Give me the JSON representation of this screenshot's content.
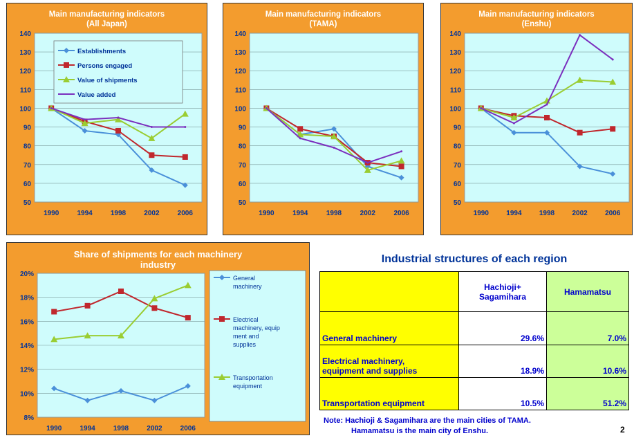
{
  "chart_data": [
    {
      "type": "line",
      "title": "Main manufacturing indicators (All Japan)",
      "title_lines": [
        "Main manufacturing indicators",
        "(All Japan)"
      ],
      "categories": [
        "1990",
        "1994",
        "1998",
        "2002",
        "2006"
      ],
      "ylim": [
        50,
        140
      ],
      "yticks": [
        "50",
        "60",
        "70",
        "80",
        "90",
        "100",
        "110",
        "120",
        "130",
        "140"
      ],
      "legend": "inside-top",
      "series": [
        {
          "name": "Establishments",
          "color": "#4a90d9",
          "marker": "diamond",
          "values": [
            100,
            88,
            86,
            67,
            59
          ]
        },
        {
          "name": "Persons engaged",
          "color": "#c0272d",
          "marker": "square",
          "values": [
            100,
            93,
            88,
            75,
            74
          ]
        },
        {
          "name": "Value of shipments",
          "color": "#9acd32",
          "marker": "triangle",
          "values": [
            100,
            92,
            94,
            84,
            97
          ]
        },
        {
          "name": "Value added",
          "color": "#7b2fbe",
          "marker": "none",
          "values": [
            100,
            94,
            95,
            90,
            90
          ]
        }
      ]
    },
    {
      "type": "line",
      "title": "Main manufacturing indicators (TAMA)",
      "title_lines": [
        "Main manufacturing indicators",
        "(TAMA)"
      ],
      "categories": [
        "1990",
        "1994",
        "1998",
        "2002",
        "2006"
      ],
      "ylim": [
        50,
        140
      ],
      "yticks": [
        "50",
        "60",
        "70",
        "80",
        "90",
        "100",
        "110",
        "120",
        "130",
        "140"
      ],
      "series": [
        {
          "name": "Establishments",
          "color": "#4a90d9",
          "marker": "diamond",
          "values": [
            100,
            86,
            89,
            69,
            63
          ]
        },
        {
          "name": "Persons engaged",
          "color": "#c0272d",
          "marker": "square",
          "values": [
            100,
            89,
            85,
            71,
            69
          ]
        },
        {
          "name": "Value of shipments",
          "color": "#9acd32",
          "marker": "triangle",
          "values": [
            100,
            86,
            85,
            67,
            72
          ]
        },
        {
          "name": "Value added",
          "color": "#7b2fbe",
          "marker": "none",
          "values": [
            100,
            84,
            79,
            71,
            77
          ]
        }
      ]
    },
    {
      "type": "line",
      "title": "Main manufacturing indicators (Enshu)",
      "title_lines": [
        "Main manufacturing indicators",
        "(Enshu)"
      ],
      "categories": [
        "1990",
        "1994",
        "1998",
        "2002",
        "2006"
      ],
      "ylim": [
        50,
        140
      ],
      "yticks": [
        "50",
        "60",
        "70",
        "80",
        "90",
        "100",
        "110",
        "120",
        "130",
        "140"
      ],
      "series": [
        {
          "name": "Establishments",
          "color": "#4a90d9",
          "marker": "diamond",
          "values": [
            100,
            87,
            87,
            69,
            65
          ]
        },
        {
          "name": "Persons engaged",
          "color": "#c0272d",
          "marker": "square",
          "values": [
            100,
            96,
            95,
            87,
            89
          ]
        },
        {
          "name": "Value of shipments",
          "color": "#9acd32",
          "marker": "triangle",
          "values": [
            100,
            95,
            104,
            115,
            114
          ]
        },
        {
          "name": "Value added",
          "color": "#7b2fbe",
          "marker": "none",
          "values": [
            100,
            92,
            102,
            139,
            126
          ]
        }
      ]
    },
    {
      "type": "line",
      "title": "Share of shipments for each machinery industry",
      "title_lines": [
        "Share of shipments for each machinery",
        "industry"
      ],
      "categories": [
        "1990",
        "1994",
        "1998",
        "2002",
        "2006"
      ],
      "ylim": [
        8,
        20
      ],
      "yticks": [
        "8%",
        "10%",
        "12%",
        "14%",
        "16%",
        "18%",
        "20%"
      ],
      "legend": "right",
      "series": [
        {
          "name": "General machinery",
          "label_lines": [
            "General",
            "machinery"
          ],
          "color": "#4a90d9",
          "marker": "diamond",
          "values": [
            10.4,
            9.4,
            10.2,
            9.4,
            10.6
          ]
        },
        {
          "name": "Electrical machinery, equipment and supplies",
          "label_lines": [
            "Electrical",
            "machinery, equip",
            "ment and",
            "supplies"
          ],
          "color": "#c0272d",
          "marker": "square",
          "values": [
            16.8,
            17.3,
            18.5,
            17.1,
            16.3
          ]
        },
        {
          "name": "Transportation equipment",
          "label_lines": [
            "Transportation",
            "equipment"
          ],
          "color": "#9acd32",
          "marker": "triangle",
          "values": [
            14.5,
            14.8,
            14.8,
            17.9,
            19.0
          ]
        }
      ]
    }
  ],
  "table": {
    "title": "Industrial structures of each region",
    "headers": [
      "",
      "Hachioji+\nSagamihara",
      "Hamamatsu"
    ],
    "rows": [
      {
        "label": "General machinery",
        "v1": "29.6%",
        "v2": "7.0%"
      },
      {
        "label": "Electrical machinery,\nequipment and supplies",
        "v1": "18.9%",
        "v2": "10.6%"
      },
      {
        "label": "Transportation equipment",
        "v1": "10.5%",
        "v2": "51.2%"
      }
    ]
  },
  "note": {
    "line1": "Note: Hachioji & Sagamihara are the main cities of TAMA.",
    "line2": "Hamamatsu is the main city of Enshu."
  },
  "page_number": "2",
  "colors": {
    "panel": "#f39c2e",
    "plot": "#cffcfc",
    "title_text": "#ffffff",
    "axis_text": "#003399",
    "table_label": "#ffff00",
    "table_hamamatsu": "#ccff99",
    "table_text": "#0000cc"
  }
}
